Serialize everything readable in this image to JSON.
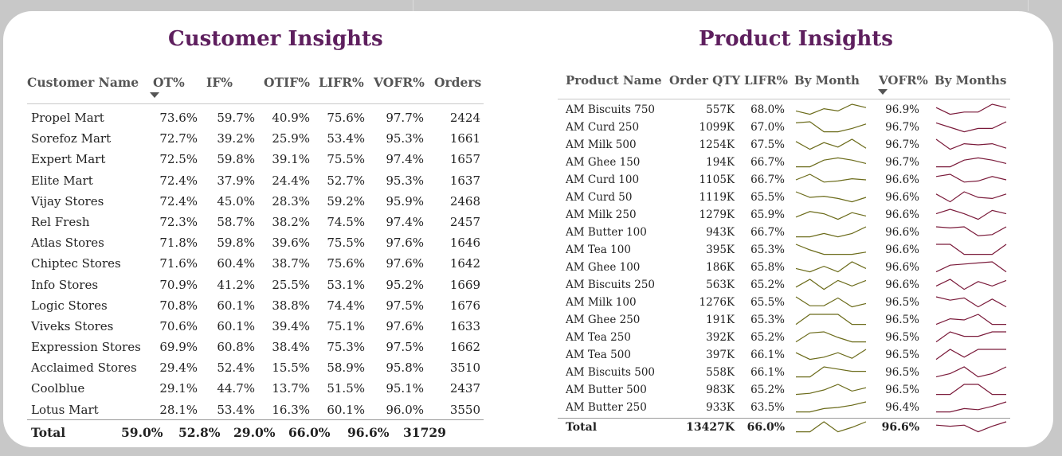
{
  "customer": {
    "title": "Customer Insights",
    "headers": [
      "Customer Name",
      "OT%",
      "IF%",
      "OTIF%",
      "LIFR%",
      "VOFR%",
      "Orders"
    ],
    "rows": [
      [
        "Propel Mart",
        "73.6%",
        "59.7%",
        "40.9%",
        "75.6%",
        "97.7%",
        "2424"
      ],
      [
        "Sorefoz Mart",
        "72.7%",
        "39.2%",
        "25.9%",
        "53.4%",
        "95.3%",
        "1661"
      ],
      [
        "Expert Mart",
        "72.5%",
        "59.8%",
        "39.1%",
        "75.5%",
        "97.4%",
        "1657"
      ],
      [
        "Elite Mart",
        "72.4%",
        "37.9%",
        "24.4%",
        "52.7%",
        "95.3%",
        "1637"
      ],
      [
        "Vijay Stores",
        "72.4%",
        "45.0%",
        "28.3%",
        "59.2%",
        "95.9%",
        "2468"
      ],
      [
        "Rel Fresh",
        "72.3%",
        "58.7%",
        "38.2%",
        "74.5%",
        "97.4%",
        "2457"
      ],
      [
        "Atlas Stores",
        "71.8%",
        "59.8%",
        "39.6%",
        "75.5%",
        "97.6%",
        "1646"
      ],
      [
        "Chiptec Stores",
        "71.6%",
        "60.4%",
        "38.7%",
        "75.6%",
        "97.6%",
        "1642"
      ],
      [
        "Info Stores",
        "70.9%",
        "41.2%",
        "25.5%",
        "53.1%",
        "95.2%",
        "1669"
      ],
      [
        "Logic Stores",
        "70.8%",
        "60.1%",
        "38.8%",
        "74.4%",
        "97.5%",
        "1676"
      ],
      [
        "Viveks Stores",
        "70.6%",
        "60.1%",
        "39.4%",
        "75.1%",
        "97.6%",
        "1633"
      ],
      [
        "Expression Stores",
        "69.9%",
        "60.8%",
        "38.4%",
        "75.3%",
        "97.5%",
        "1662"
      ],
      [
        "Acclaimed Stores",
        "29.4%",
        "52.4%",
        "15.5%",
        "58.9%",
        "95.8%",
        "3510"
      ],
      [
        "Coolblue",
        "29.1%",
        "44.7%",
        "13.7%",
        "51.5%",
        "95.1%",
        "2437"
      ],
      [
        "Lotus Mart",
        "28.1%",
        "53.4%",
        "16.3%",
        "60.1%",
        "96.0%",
        "3550"
      ]
    ],
    "total": [
      "Total",
      "59.0%",
      "52.8%",
      "29.0%",
      "66.0%",
      "96.6%",
      "31729"
    ],
    "sorted_column": "OT%"
  },
  "product": {
    "title": "Product Insights",
    "headers": [
      "Product Name",
      "Order QTY",
      "LIFR%",
      "By Month",
      "VOFR%",
      "By Months"
    ],
    "rows": [
      [
        "AM Biscuits 750",
        "557K",
        "68.0%",
        "96.9%"
      ],
      [
        "AM Curd 250",
        "1099K",
        "67.0%",
        "96.7%"
      ],
      [
        "AM Milk 500",
        "1254K",
        "67.5%",
        "96.7%"
      ],
      [
        "AM Ghee 150",
        "194K",
        "66.7%",
        "96.7%"
      ],
      [
        "AM Curd 100",
        "1105K",
        "66.7%",
        "96.6%"
      ],
      [
        "AM Curd 50",
        "1119K",
        "65.5%",
        "96.6%"
      ],
      [
        "AM Milk 250",
        "1279K",
        "65.9%",
        "96.6%"
      ],
      [
        "AM Butter 100",
        "943K",
        "66.7%",
        "96.6%"
      ],
      [
        "AM Tea 100",
        "395K",
        "65.3%",
        "96.6%"
      ],
      [
        "AM Ghee 100",
        "186K",
        "65.8%",
        "96.6%"
      ],
      [
        "AM Biscuits 250",
        "563K",
        "65.2%",
        "96.6%"
      ],
      [
        "AM Milk 100",
        "1276K",
        "65.5%",
        "96.5%"
      ],
      [
        "AM Ghee 250",
        "191K",
        "65.3%",
        "96.5%"
      ],
      [
        "AM Tea 250",
        "392K",
        "65.2%",
        "96.5%"
      ],
      [
        "AM Tea 500",
        "397K",
        "66.1%",
        "96.5%"
      ],
      [
        "AM Biscuits 500",
        "558K",
        "66.1%",
        "96.5%"
      ],
      [
        "AM Butter 500",
        "983K",
        "65.2%",
        "96.5%"
      ],
      [
        "AM Butter 250",
        "933K",
        "63.5%",
        "96.4%"
      ]
    ],
    "total": [
      "Total",
      "13427K",
      "66.0%",
      "96.6%"
    ],
    "sorted_column": "VOFR%",
    "lifr_sparklines": [
      [
        0.6,
        0.9,
        0.4,
        0.6,
        0.0,
        0.3
      ],
      [
        0.1,
        0.0,
        0.9,
        0.9,
        0.6,
        0.2
      ],
      [
        0.2,
        0.9,
        0.3,
        0.7,
        0.0,
        0.8
      ],
      [
        0.9,
        0.9,
        0.3,
        0.1,
        0.3,
        0.6
      ],
      [
        0.5,
        0.0,
        0.7,
        0.6,
        0.4,
        0.5
      ],
      [
        0.0,
        0.5,
        0.4,
        0.6,
        0.9,
        0.5
      ],
      [
        0.7,
        0.2,
        0.4,
        0.9,
        0.3,
        0.6
      ],
      [
        0.9,
        0.9,
        0.6,
        0.9,
        0.6,
        0.0
      ],
      [
        0.0,
        0.5,
        0.9,
        0.9,
        0.9,
        0.7
      ],
      [
        0.6,
        0.9,
        0.4,
        0.9,
        0.0,
        0.6
      ],
      [
        0.7,
        0.0,
        0.9,
        0.1,
        0.6,
        0.1
      ],
      [
        0.0,
        0.8,
        0.8,
        0.1,
        0.9,
        0.6
      ],
      [
        0.9,
        0.0,
        0.0,
        0.0,
        0.9,
        0.9
      ],
      [
        0.9,
        0.1,
        0.0,
        0.5,
        0.9,
        0.9
      ],
      [
        0.3,
        0.9,
        0.7,
        0.3,
        0.8,
        0.0
      ],
      [
        0.9,
        0.9,
        0.0,
        0.2,
        0.4,
        0.4
      ],
      [
        0.9,
        0.8,
        0.5,
        0.0,
        0.6,
        0.3
      ],
      [
        0.9,
        0.9,
        0.6,
        0.5,
        0.3,
        0.0
      ]
    ],
    "vofr_sparklines": [
      [
        0.3,
        0.9,
        0.7,
        0.7,
        0.0,
        0.3
      ],
      [
        0.1,
        0.5,
        0.9,
        0.6,
        0.6,
        0.0
      ],
      [
        0.0,
        0.9,
        0.4,
        0.5,
        0.4,
        0.8
      ],
      [
        0.9,
        0.9,
        0.3,
        0.1,
        0.3,
        0.6
      ],
      [
        0.2,
        0.0,
        0.7,
        0.6,
        0.2,
        0.5
      ],
      [
        0.2,
        0.9,
        0.0,
        0.5,
        0.6,
        0.2
      ],
      [
        0.4,
        0.0,
        0.4,
        0.9,
        0.1,
        0.4
      ],
      [
        0.0,
        0.1,
        0.0,
        0.8,
        0.7,
        0.0
      ],
      [
        0.0,
        0.0,
        0.9,
        0.9,
        0.9,
        0.0
      ],
      [
        0.9,
        0.3,
        0.2,
        0.1,
        0.0,
        0.9
      ],
      [
        0.6,
        0.0,
        0.9,
        0.2,
        0.6,
        0.1
      ],
      [
        0.0,
        0.3,
        0.1,
        0.9,
        0.2,
        0.9
      ],
      [
        0.9,
        0.4,
        0.5,
        0.0,
        0.9,
        0.9
      ],
      [
        0.9,
        0.0,
        0.4,
        0.4,
        0.0,
        0.0
      ],
      [
        0.9,
        0.0,
        0.7,
        0.0,
        0.0,
        0.0
      ],
      [
        0.9,
        0.6,
        0.0,
        0.9,
        0.6,
        0.0
      ],
      [
        0.9,
        0.9,
        0.0,
        0.0,
        0.9,
        0.9
      ],
      [
        0.9,
        0.9,
        0.6,
        0.7,
        0.4,
        0.0
      ]
    ],
    "total_lifr_sparkline": [
      0.9,
      0.9,
      0.0,
      0.9,
      0.5,
      0.0
    ],
    "total_vofr_sparkline": [
      0.3,
      0.4,
      0.3,
      0.9,
      0.4,
      0.0
    ]
  },
  "colors": {
    "title": "#5e1f5e",
    "lifr_sparkline": "#6b6b1a",
    "vofr_sparkline": "#7a1a3a"
  }
}
